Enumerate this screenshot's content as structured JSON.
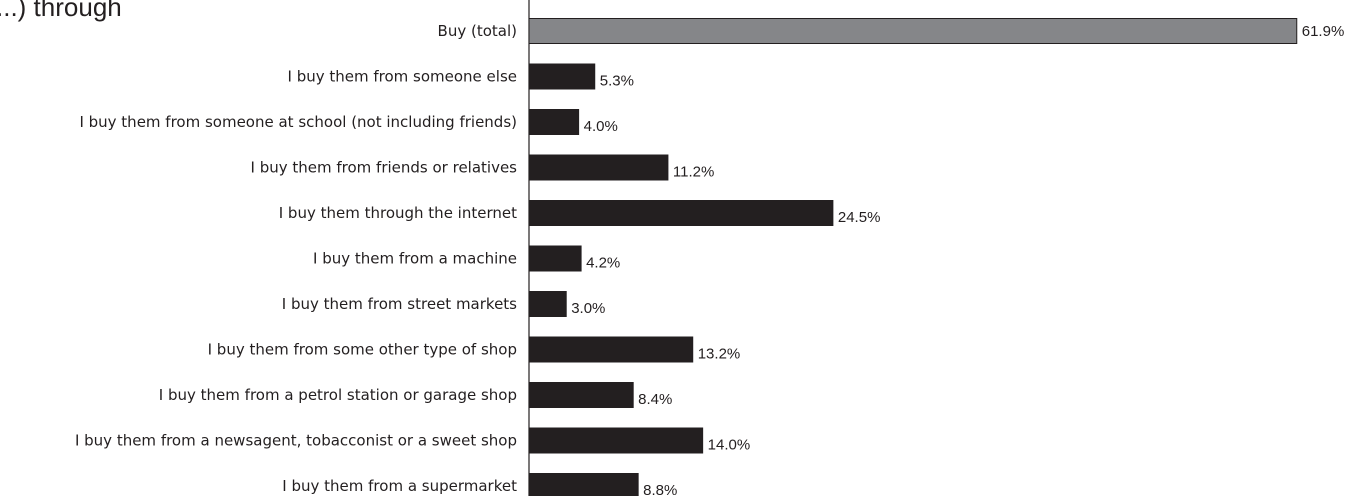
{
  "chart_data": {
    "type": "bar",
    "orientation": "horizontal",
    "title": "...) through",
    "categories": [
      "Buy (total)",
      "I buy them from someone else",
      "I buy them from someone at school (not including friends)",
      "I buy them from friends or relatives",
      "I buy them through the internet",
      "I buy them from a machine",
      "I buy them from street markets",
      "I buy them from some other type of shop",
      "I buy them from a petrol station or garage shop",
      "I buy them from a newsagent, tobacconist or a sweet shop",
      "I buy them from a supermarket"
    ],
    "values": [
      61.9,
      5.3,
      4.0,
      11.2,
      24.5,
      4.2,
      3.0,
      13.2,
      8.4,
      14.0,
      8.8
    ],
    "value_labels": [
      "61.9%",
      "5.3%",
      "4.0%",
      "11.2%",
      "24.5%",
      "4.2%",
      "3.0%",
      "13.2%",
      "8.4%",
      "14.0%",
      "8.8%"
    ],
    "bar_colors": [
      "#858689",
      "#231f20",
      "#231f20",
      "#231f20",
      "#231f20",
      "#231f20",
      "#231f20",
      "#231f20",
      "#231f20",
      "#231f20",
      "#231f20"
    ],
    "xlim": [
      0,
      62
    ],
    "grid": false,
    "legend": "none"
  }
}
